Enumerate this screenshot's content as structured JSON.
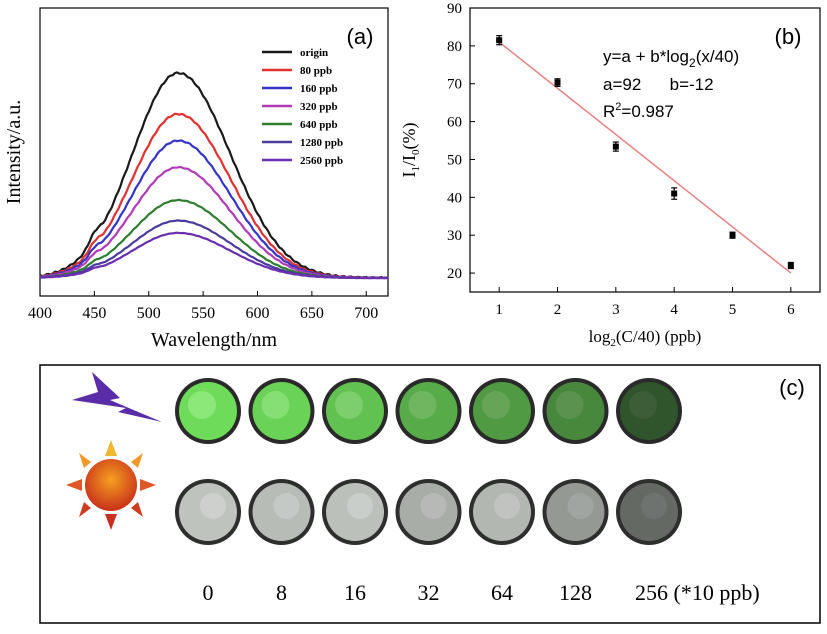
{
  "panels": {
    "a_label": "(a)",
    "b_label": "(b)",
    "c_label": "(c)"
  },
  "colors": {
    "origin": "#1a1a1a",
    "80 ppb": "#e03030",
    "160 ppb": "#3434c8",
    "320 ppb": "#b23ab8",
    "640 ppb": "#2f7f2f",
    "1280 ppb": "#4a3c9c",
    "2560 ppb": "#6a2fb0",
    "fit_line": "#e88080",
    "green_dish": "#5cc84a",
    "gray_dish": "#8c8c8c",
    "bolt": "#5a2ca8",
    "sun": "#e04a10"
  },
  "chart_data": [
    {
      "type": "line",
      "panel": "a",
      "title": "",
      "xlabel": "Wavelength/nm",
      "ylabel": "Intensity/a.u.",
      "xlim": [
        400,
        720
      ],
      "xticks": [
        400,
        450,
        500,
        550,
        600,
        650,
        700
      ],
      "legend": "top-right",
      "peak_wavelength": 527,
      "series": [
        {
          "name": "origin",
          "peak_relative": 1.0
        },
        {
          "name": "80 ppb",
          "peak_relative": 0.8
        },
        {
          "name": "160 ppb",
          "peak_relative": 0.67
        },
        {
          "name": "320 ppb",
          "peak_relative": 0.54
        },
        {
          "name": "640 ppb",
          "peak_relative": 0.38
        },
        {
          "name": "1280 ppb",
          "peak_relative": 0.28
        },
        {
          "name": "2560 ppb",
          "peak_relative": 0.22
        }
      ]
    },
    {
      "type": "scatter",
      "panel": "b",
      "title": "",
      "xlabel_main": "log",
      "xlabel_sub": "2",
      "xlabel_rest": "(C/40)  (ppb)",
      "ylabel_main": "I",
      "ylabel_sub1": "1",
      "ylabel_mid": "/I",
      "ylabel_sub2": "0",
      "ylabel_rest": "(%)",
      "xlim": [
        0.5,
        6.5
      ],
      "ylim": [
        15,
        90
      ],
      "xticks": [
        1,
        2,
        3,
        4,
        5,
        6
      ],
      "yticks": [
        20,
        30,
        40,
        50,
        60,
        70,
        80,
        90
      ],
      "x": [
        1,
        2,
        3,
        4,
        5,
        6
      ],
      "y": [
        81.5,
        70.3,
        53.4,
        41.0,
        30.0,
        22.0
      ],
      "yerr": [
        1.2,
        1.0,
        1.2,
        1.5,
        0.8,
        0.8
      ],
      "fit": {
        "x": [
          1,
          6
        ],
        "y": [
          81,
          20
        ]
      },
      "eq_line1_main": "y=a + b*log",
      "eq_line1_sub": "2",
      "eq_line1_rest": "(x/40)",
      "eq_line2": "a=92      b=-12",
      "eq_line3_main": "R",
      "eq_line3_sup": "2",
      "eq_line3_rest": "=0.987"
    }
  ],
  "panel_c": {
    "labels": [
      "0",
      "8",
      "16",
      "32",
      "64",
      "128",
      "256 (*10 ppb)"
    ],
    "uv_brightness": [
      1.0,
      0.95,
      0.85,
      0.72,
      0.62,
      0.52,
      0.22
    ],
    "day_brightness": [
      0.9,
      0.85,
      0.88,
      0.75,
      0.82,
      0.62,
      0.3
    ]
  }
}
